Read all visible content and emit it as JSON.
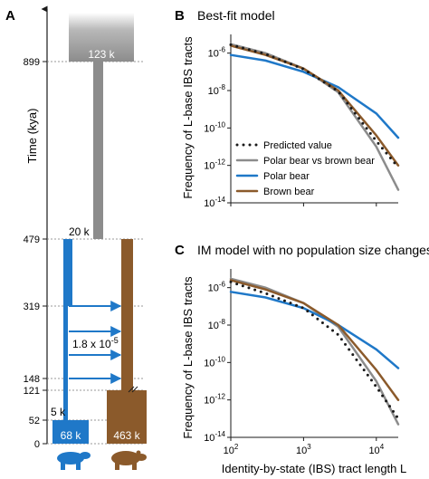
{
  "figure": {
    "panels": {
      "a": {
        "label": "A",
        "y_label": "Time (kya)",
        "time_ticks": [
          0,
          52,
          121,
          148,
          319,
          479,
          899
        ],
        "popsize_ancestral": "123 k",
        "popsize_bottleneck": "20 k",
        "popsize_polar_founder": "5 k",
        "popsize_polar": "68 k",
        "popsize_brown": "463 k",
        "migration_rate_base": "1.8 x 10",
        "migration_rate_exp": "-5",
        "colors": {
          "polar": "#1f78c8",
          "brown": "#8b5a2b",
          "ancestral": "#8c8c8c"
        },
        "icons": [
          "polar-bear-icon",
          "brown-bear-icon"
        ]
      },
      "b": {
        "label": "B",
        "title": "Best-fit model"
      },
      "c": {
        "label": "C",
        "title": "IM model with no population size changes"
      }
    },
    "legend": [
      "Predicted value",
      "Polar bear vs brown bear",
      "Polar bear",
      "Brown bear"
    ],
    "x_label": "Identity-by-state (IBS) tract length L",
    "y_label": "Frequency of L-base IBS tracts"
  },
  "chart_data": [
    {
      "type": "line",
      "title": "Best-fit model",
      "xlabel": "Identity-by-state (IBS) tract length L",
      "ylabel": "Frequency of L-base IBS tracts",
      "xscale": "log",
      "yscale": "log",
      "xlim": [
        100,
        20000
      ],
      "ylim": [
        1e-14,
        1e-05
      ],
      "series": [
        {
          "name": "Polar bear vs brown bear",
          "color": "#8c8c8c",
          "x": [
            100,
            300,
            1000,
            3000,
            10000,
            20000
          ],
          "y": [
            3e-06,
            1e-06,
            1.5e-07,
            8e-09,
            1e-11,
            5e-14
          ]
        },
        {
          "name": "Polar bear",
          "color": "#1f78c8",
          "x": [
            100,
            300,
            1000,
            3000,
            10000,
            20000
          ],
          "y": [
            8e-07,
            4e-07,
            1e-07,
            1.5e-08,
            6e-10,
            3e-11
          ]
        },
        {
          "name": "Brown bear",
          "color": "#8b5a2b",
          "x": [
            100,
            300,
            1000,
            3000,
            10000,
            20000
          ],
          "y": [
            2.5e-06,
            8e-07,
            1.5e-07,
            1e-08,
            4e-11,
            1e-12
          ]
        },
        {
          "name": "Predicted value",
          "style": "dotted",
          "x": [
            100,
            300,
            1000,
            3000,
            10000,
            20000
          ],
          "y": [
            2.8e-06,
            9e-07,
            1.4e-07,
            9e-09,
            2e-11,
            8e-13
          ]
        }
      ],
      "legend": "top-right"
    },
    {
      "type": "line",
      "title": "IM model with no population size changes",
      "xlabel": "Identity-by-state (IBS) tract length L",
      "ylabel": "Frequency of L-base IBS tracts",
      "xscale": "log",
      "yscale": "log",
      "xlim": [
        100,
        20000
      ],
      "ylim": [
        1e-14,
        1e-05
      ],
      "series": [
        {
          "name": "Polar bear vs brown bear",
          "color": "#8c8c8c",
          "x": [
            100,
            300,
            1000,
            3000,
            10000,
            20000
          ],
          "y": [
            3e-06,
            1e-06,
            1.5e-07,
            8e-09,
            1e-11,
            5e-14
          ]
        },
        {
          "name": "Polar bear",
          "color": "#1f78c8",
          "x": [
            100,
            300,
            1000,
            3000,
            10000,
            20000
          ],
          "y": [
            6e-07,
            3e-07,
            8e-08,
            1e-08,
            5e-10,
            5e-11
          ]
        },
        {
          "name": "Brown bear",
          "color": "#8b5a2b",
          "x": [
            100,
            300,
            1000,
            3000,
            10000,
            20000
          ],
          "y": [
            2.5e-06,
            8e-07,
            1.5e-07,
            1e-08,
            4e-11,
            1e-12
          ]
        },
        {
          "name": "Predicted value",
          "style": "dotted",
          "x": [
            100,
            300,
            1000,
            3000,
            10000,
            20000
          ],
          "y": [
            2e-06,
            5e-07,
            8e-08,
            3e-09,
            5e-12,
            1e-13
          ]
        }
      ]
    }
  ]
}
